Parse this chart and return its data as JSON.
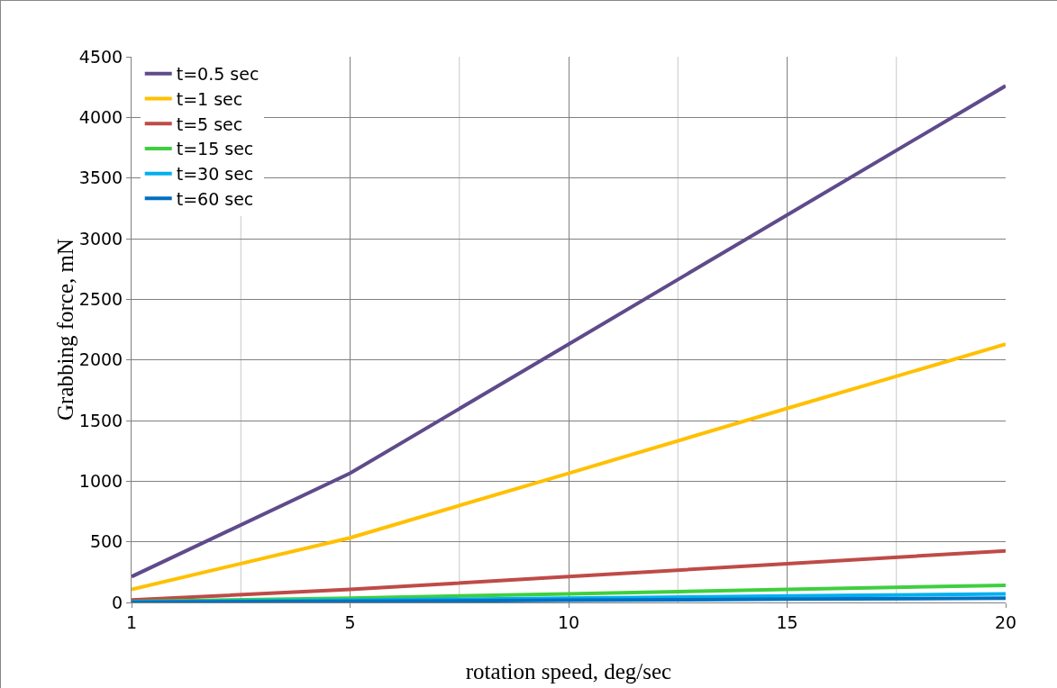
{
  "chart_data": {
    "type": "line",
    "xlabel": "rotation speed, deg/sec",
    "ylabel": "Grabbing force, mN",
    "categories": [
      "1",
      "5",
      "10",
      "15",
      "20"
    ],
    "series": [
      {
        "name": "t=0.5 sec",
        "color": "#5f4b8b",
        "values": [
          213,
          1065,
          2130,
          3195,
          4260
        ]
      },
      {
        "name": "t=1 sec",
        "color": "#ffc000",
        "values": [
          107,
          533,
          1065,
          1600,
          2130
        ]
      },
      {
        "name": "t=5 sec",
        "color": "#be4b48",
        "values": [
          21,
          107,
          213,
          320,
          426
        ]
      },
      {
        "name": "t=15 sec",
        "color": "#3fcf3f",
        "values": [
          7,
          36,
          71,
          107,
          142
        ]
      },
      {
        "name": "t=30 sec",
        "color": "#00b0f0",
        "values": [
          4,
          18,
          36,
          53,
          71
        ]
      },
      {
        "name": "t=60 sec",
        "color": "#0070c0",
        "values": [
          2,
          9,
          18,
          27,
          36
        ]
      }
    ],
    "ylim": [
      0,
      4500
    ],
    "yticks": [
      0,
      500,
      1000,
      1500,
      2000,
      2500,
      3000,
      3500,
      4000,
      4500
    ],
    "grid": true,
    "legend": "top left",
    "marker": "none",
    "line_style": "solid"
  }
}
